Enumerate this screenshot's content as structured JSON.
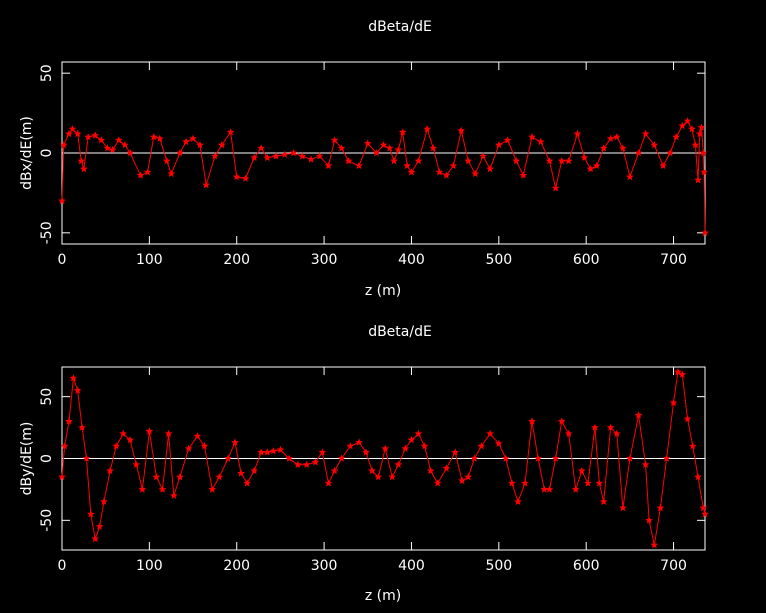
{
  "chart_data": [
    {
      "type": "line",
      "title": "dBeta/dE",
      "xlabel": "z (m)",
      "ylabel": "dBx/dE(m)",
      "color": "#ff0000",
      "xlim": [
        0,
        736
      ],
      "ylim": [
        -57,
        57
      ],
      "xticks": [
        0,
        100,
        200,
        300,
        400,
        500,
        600,
        700
      ],
      "yticks": [
        -50,
        0,
        50
      ],
      "x": [
        0,
        2,
        8,
        12,
        18,
        22,
        25,
        30,
        38,
        45,
        52,
        58,
        65,
        72,
        78,
        90,
        98,
        105,
        112,
        120,
        125,
        135,
        142,
        150,
        158,
        165,
        175,
        183,
        193,
        200,
        210,
        220,
        228,
        235,
        245,
        255,
        265,
        275,
        285,
        295,
        305,
        312,
        320,
        328,
        340,
        350,
        360,
        368,
        375,
        380,
        385,
        390,
        395,
        400,
        408,
        418,
        425,
        432,
        440,
        448,
        457,
        465,
        473,
        482,
        490,
        500,
        510,
        520,
        528,
        538,
        548,
        558,
        565,
        572,
        580,
        590,
        598,
        605,
        612,
        620,
        628,
        635,
        642,
        650,
        660,
        668,
        678,
        688,
        696,
        703,
        710,
        716,
        721,
        725,
        728,
        730,
        732,
        734,
        735,
        736
      ],
      "values": [
        -30,
        5,
        12,
        15,
        12,
        -5,
        -10,
        10,
        11,
        8,
        3,
        2,
        8,
        5,
        0,
        -14,
        -12,
        10,
        9,
        -5,
        -13,
        0,
        7,
        9,
        5,
        -20,
        -2,
        5,
        13,
        -15,
        -16,
        -3,
        3,
        -3,
        -2,
        -1,
        0,
        -2,
        -4,
        -2,
        -8,
        8,
        3,
        -5,
        -8,
        6,
        0,
        5,
        3,
        -5,
        2,
        13,
        -8,
        -12,
        -5,
        15,
        3,
        -12,
        -14,
        -8,
        14,
        -5,
        -13,
        -2,
        -10,
        5,
        8,
        -5,
        -14,
        10,
        7,
        -5,
        -22,
        -5,
        -5,
        12,
        -3,
        -10,
        -8,
        3,
        9,
        10,
        3,
        -15,
        0,
        12,
        5,
        -8,
        0,
        10,
        17,
        20,
        15,
        5,
        -17,
        12,
        16,
        0,
        -12,
        -50
      ]
    },
    {
      "type": "line",
      "title": "dBeta/dE",
      "xlabel": "z (m)",
      "ylabel": "dBy/dE(m)",
      "color": "#ff0000",
      "xlim": [
        0,
        736
      ],
      "ylim": [
        -74,
        74
      ],
      "xticks": [
        0,
        100,
        200,
        300,
        400,
        500,
        600,
        700
      ],
      "yticks": [
        -50,
        0,
        50
      ],
      "x": [
        0,
        3,
        8,
        13,
        18,
        23,
        28,
        33,
        38,
        43,
        48,
        55,
        62,
        70,
        78,
        85,
        92,
        100,
        108,
        115,
        122,
        128,
        135,
        145,
        155,
        163,
        172,
        180,
        190,
        198,
        205,
        212,
        220,
        228,
        235,
        242,
        250,
        260,
        270,
        280,
        290,
        298,
        305,
        312,
        320,
        330,
        340,
        348,
        355,
        362,
        370,
        378,
        385,
        393,
        400,
        408,
        415,
        422,
        430,
        440,
        450,
        458,
        465,
        472,
        480,
        490,
        500,
        508,
        515,
        522,
        530,
        538,
        545,
        552,
        558,
        565,
        572,
        580,
        588,
        595,
        602,
        610,
        615,
        620,
        628,
        635,
        642,
        650,
        660,
        668,
        672,
        678,
        685,
        692,
        700,
        705,
        710,
        716,
        722,
        728,
        734,
        736
      ],
      "values": [
        -15,
        10,
        30,
        65,
        55,
        25,
        0,
        -45,
        -65,
        -55,
        -35,
        -10,
        10,
        20,
        15,
        -5,
        -25,
        22,
        -15,
        -25,
        20,
        -30,
        -15,
        8,
        18,
        10,
        -25,
        -15,
        0,
        13,
        -12,
        -20,
        -10,
        5,
        5,
        6,
        7,
        0,
        -5,
        -5,
        -3,
        5,
        -20,
        -10,
        0,
        10,
        13,
        5,
        -10,
        -15,
        8,
        -15,
        -5,
        8,
        15,
        20,
        10,
        -10,
        -20,
        -8,
        5,
        -18,
        -15,
        0,
        10,
        20,
        12,
        0,
        -20,
        -35,
        -20,
        30,
        0,
        -25,
        -25,
        0,
        30,
        20,
        -25,
        -10,
        -20,
        25,
        -20,
        -35,
        25,
        20,
        -40,
        0,
        35,
        -5,
        -50,
        -70,
        -40,
        0,
        45,
        70,
        68,
        32,
        10,
        -15,
        -40,
        -45
      ]
    }
  ]
}
